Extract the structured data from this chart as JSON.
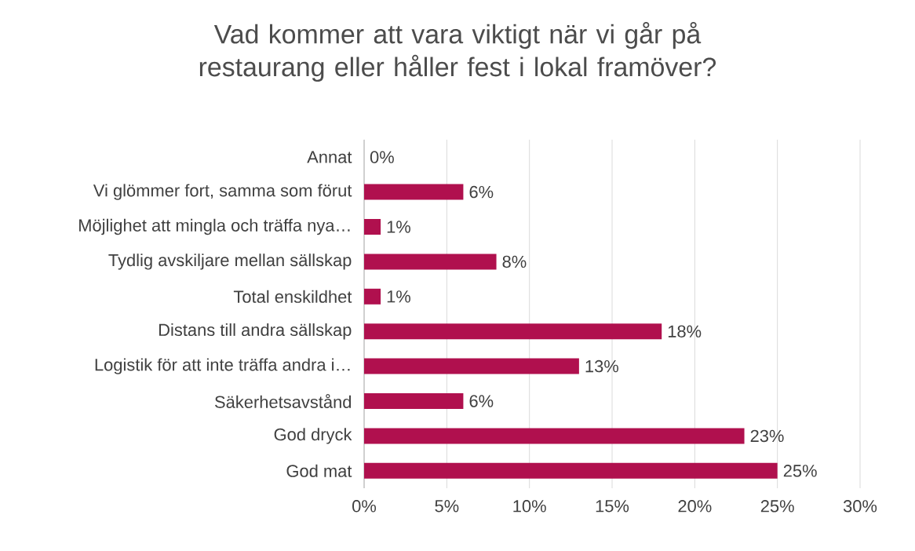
{
  "chart_data": {
    "type": "bar",
    "orientation": "horizontal",
    "title": "Vad kommer att vara viktigt när vi går på restaurang eller håller fest i lokal framöver?",
    "categories": [
      "Annat",
      "Vi glömmer fort, samma som förut",
      "Möjlighet att mingla och träffa nya…",
      "Tydlig avskiljare mellan sällskap",
      "Total enskildhet",
      "Distans till andra sällskap",
      "Logistik för att inte träffa andra i…",
      "Säkerhetsavstånd",
      "God dryck",
      "God mat"
    ],
    "values": [
      0,
      6,
      1,
      8,
      1,
      18,
      13,
      6,
      23,
      25
    ],
    "value_labels": [
      "0%",
      "6%",
      "1%",
      "8%",
      "1%",
      "18%",
      "13%",
      "6%",
      "23%",
      "25%"
    ],
    "color": "#b0104e",
    "xlim": [
      0,
      30
    ],
    "xticks": [
      {
        "value": 0,
        "label": "0%"
      },
      {
        "value": 5,
        "label": "5%"
      },
      {
        "value": 10,
        "label": "10%"
      },
      {
        "value": 15,
        "label": "15%"
      },
      {
        "value": 20,
        "label": "20%"
      },
      {
        "value": 25,
        "label": "25%"
      },
      {
        "value": 30,
        "label": "30%"
      }
    ],
    "grid": "x"
  }
}
